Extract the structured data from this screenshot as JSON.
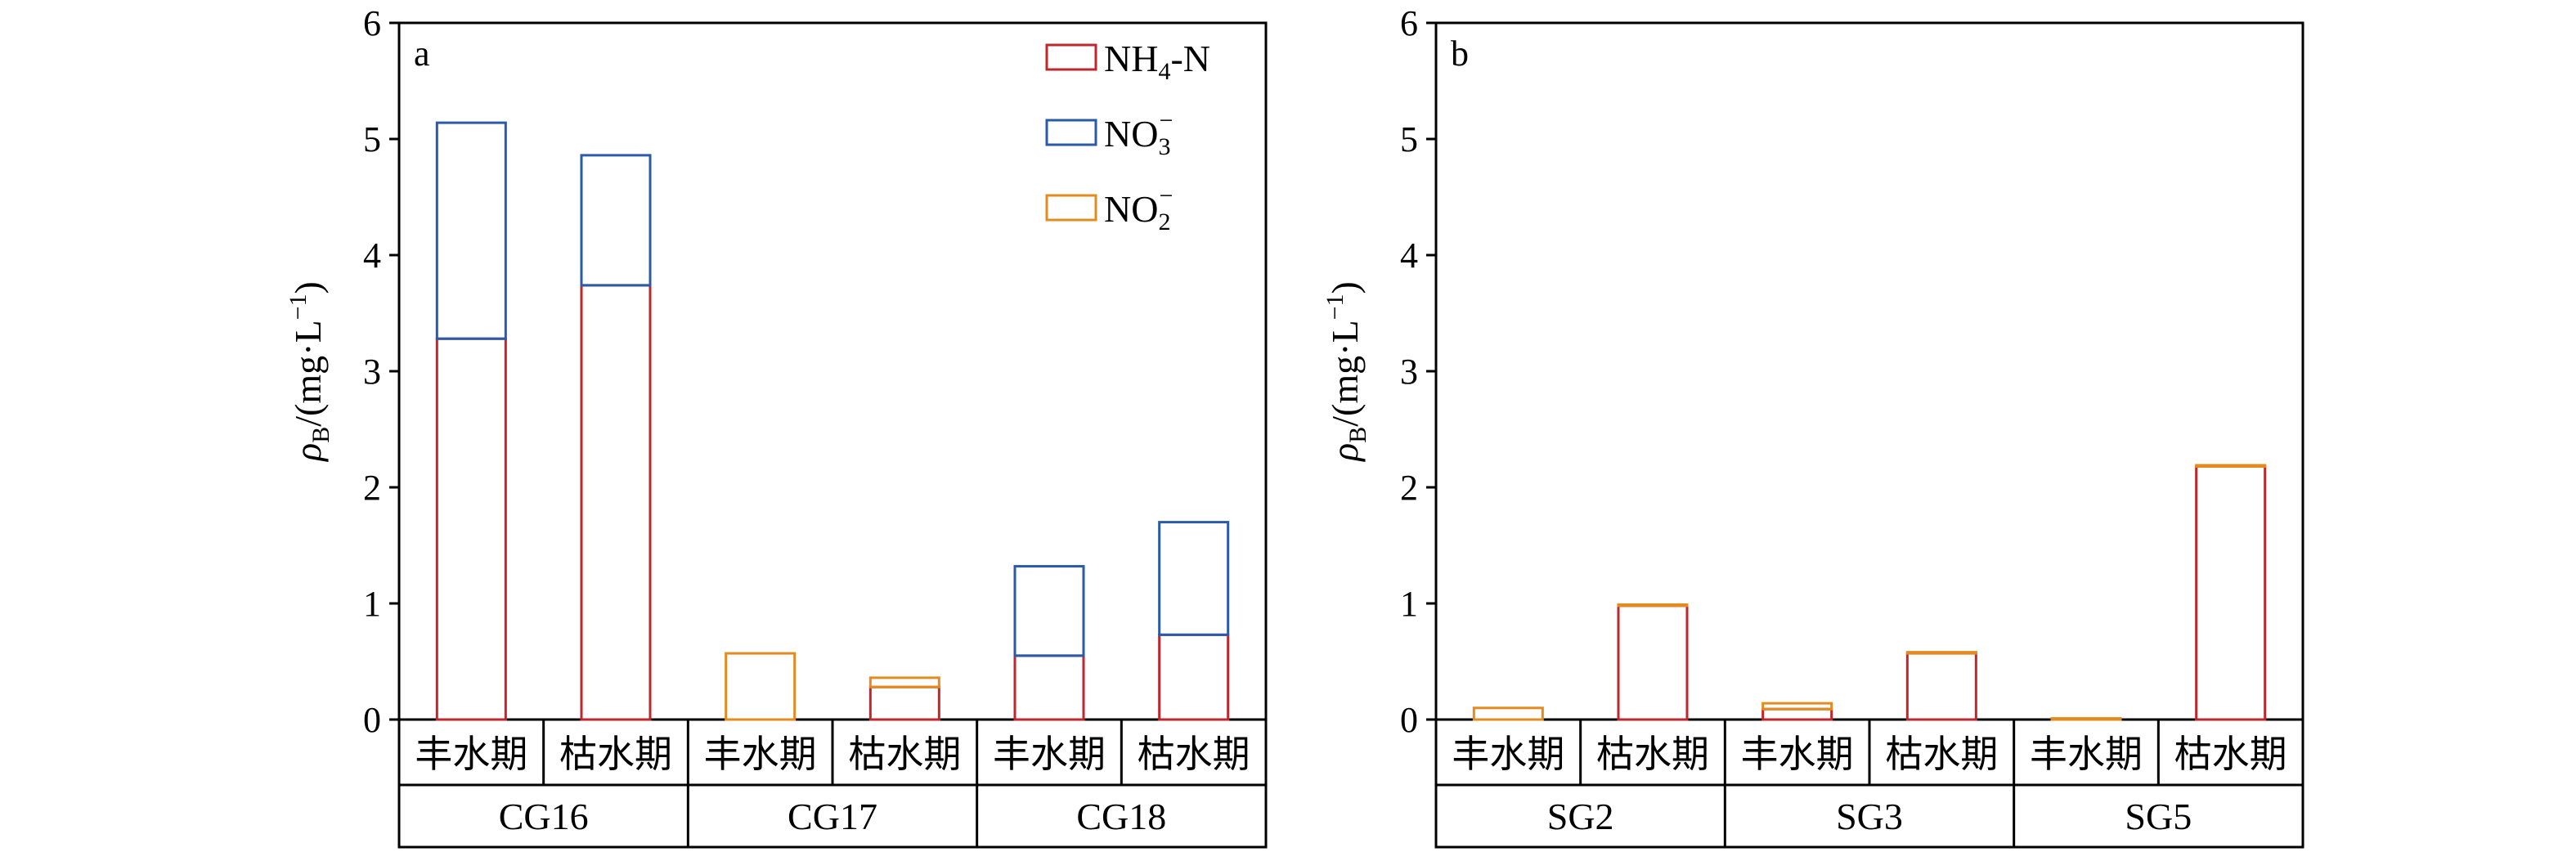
{
  "chart_data": [
    {
      "type": "bar",
      "stacked": true,
      "panel_label": "a",
      "ylabel": "ρB/(mg·L−1)",
      "ylim": [
        0,
        6
      ],
      "yticks": [
        0,
        1,
        2,
        3,
        4,
        5,
        6
      ],
      "groups": [
        {
          "name": "CG16",
          "categories": [
            "丰水期",
            "枯水期"
          ]
        },
        {
          "name": "CG17",
          "categories": [
            "丰水期",
            "枯水期"
          ]
        },
        {
          "name": "CG18",
          "categories": [
            "丰水期",
            "枯水期"
          ]
        }
      ],
      "series": [
        {
          "name": "NH4-N",
          "color": "#c0272d",
          "values": [
            3.28,
            3.74,
            0.0,
            0.28,
            0.55,
            0.73
          ]
        },
        {
          "name": "NO3−",
          "color": "#2a5ba8",
          "values": [
            1.86,
            1.12,
            0.0,
            0.0,
            0.77,
            0.97
          ]
        },
        {
          "name": "NO2−",
          "color": "#e38b1f",
          "values": [
            0.0,
            0.0,
            0.57,
            0.08,
            0.0,
            0.0
          ]
        }
      ],
      "legend_position": "top-right"
    },
    {
      "type": "bar",
      "stacked": true,
      "panel_label": "b",
      "ylabel": "ρB/(mg·L−1)",
      "ylim": [
        0,
        6
      ],
      "yticks": [
        0,
        1,
        2,
        3,
        4,
        5,
        6
      ],
      "groups": [
        {
          "name": "SG2",
          "categories": [
            "丰水期",
            "枯水期"
          ]
        },
        {
          "name": "SG3",
          "categories": [
            "丰水期",
            "枯水期"
          ]
        },
        {
          "name": "SG5",
          "categories": [
            "丰水期",
            "枯水期"
          ]
        }
      ],
      "series": [
        {
          "name": "NH4-N",
          "color": "#c0272d",
          "values": [
            0.0,
            0.98,
            0.09,
            0.57,
            0.0,
            2.18
          ]
        },
        {
          "name": "NO3−",
          "color": "#2a5ba8",
          "values": [
            0.0,
            0.0,
            0.0,
            0.0,
            0.0,
            0.0
          ]
        },
        {
          "name": "NO2−",
          "color": "#e38b1f",
          "values": [
            0.1,
            0.01,
            0.05,
            0.01,
            0.01,
            0.01
          ]
        }
      ]
    }
  ],
  "legend": {
    "items": [
      {
        "base": "NH",
        "sub": "4",
        "sup": "",
        "tail": "-N",
        "color": "#c0272d"
      },
      {
        "base": "NO",
        "sub": "3",
        "sup": "−",
        "tail": "",
        "color": "#2a5ba8"
      },
      {
        "base": "NO",
        "sub": "2",
        "sup": "−",
        "tail": "",
        "color": "#e38b1f"
      }
    ]
  },
  "ylabel_parts": {
    "rho": "ρ",
    "sub": "B",
    "mid": "/(mg·L",
    "sup": "−1",
    "end": ")"
  }
}
